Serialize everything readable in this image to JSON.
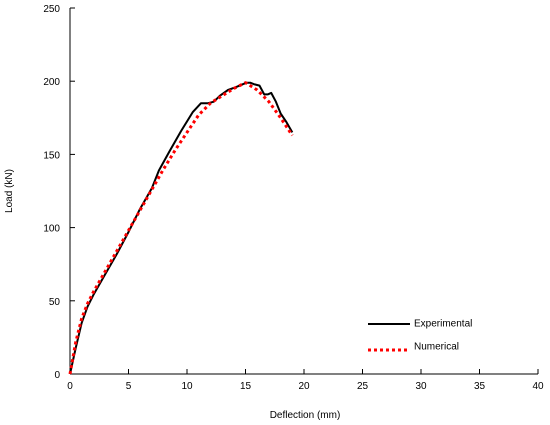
{
  "chart_data": {
    "type": "line",
    "title": "",
    "xlabel": "Deflection (mm)",
    "ylabel": "Load (kN)",
    "xlim": [
      0,
      40
    ],
    "ylim": [
      0,
      250
    ],
    "xticks": [
      0,
      5,
      10,
      15,
      20,
      25,
      30,
      35,
      40
    ],
    "yticks": [
      0,
      50,
      100,
      150,
      200,
      250
    ],
    "grid": false,
    "legend_position": "bottom-right",
    "series": [
      {
        "name": "Experimental",
        "color": "#000000",
        "style": "solid",
        "x": [
          0,
          0.5,
          1.0,
          1.5,
          2.0,
          3.0,
          4.0,
          5.0,
          6.0,
          7.0,
          7.6,
          8.5,
          9.5,
          10.5,
          11.2,
          11.8,
          12.3,
          12.8,
          13.5,
          14.2,
          14.8,
          15.1,
          15.4,
          15.7,
          16.2,
          16.6,
          16.9,
          17.2,
          17.6,
          18.0,
          18.5,
          19.0
        ],
        "values": [
          0,
          18,
          35,
          46,
          54,
          68,
          82,
          97,
          113,
          127,
          139,
          152,
          166,
          179,
          185,
          185,
          186,
          190,
          194,
          196,
          198,
          199,
          199,
          198,
          197,
          191,
          191,
          192,
          186,
          178,
          172,
          165
        ]
      },
      {
        "name": "Numerical",
        "color": "#ff0000",
        "style": "dotted",
        "x": [
          0,
          0.5,
          1.0,
          1.5,
          2.0,
          3.0,
          4.0,
          5.0,
          6.0,
          7.0,
          8.0,
          9.0,
          10.0,
          11.0,
          12.0,
          13.0,
          14.0,
          15.0,
          16.0,
          17.0,
          18.0,
          19.0
        ],
        "values": [
          0,
          22,
          38,
          48,
          56,
          70,
          84,
          98,
          112,
          126,
          140,
          153,
          165,
          177,
          185,
          190,
          195,
          199,
          194,
          186,
          175,
          163
        ]
      }
    ]
  }
}
